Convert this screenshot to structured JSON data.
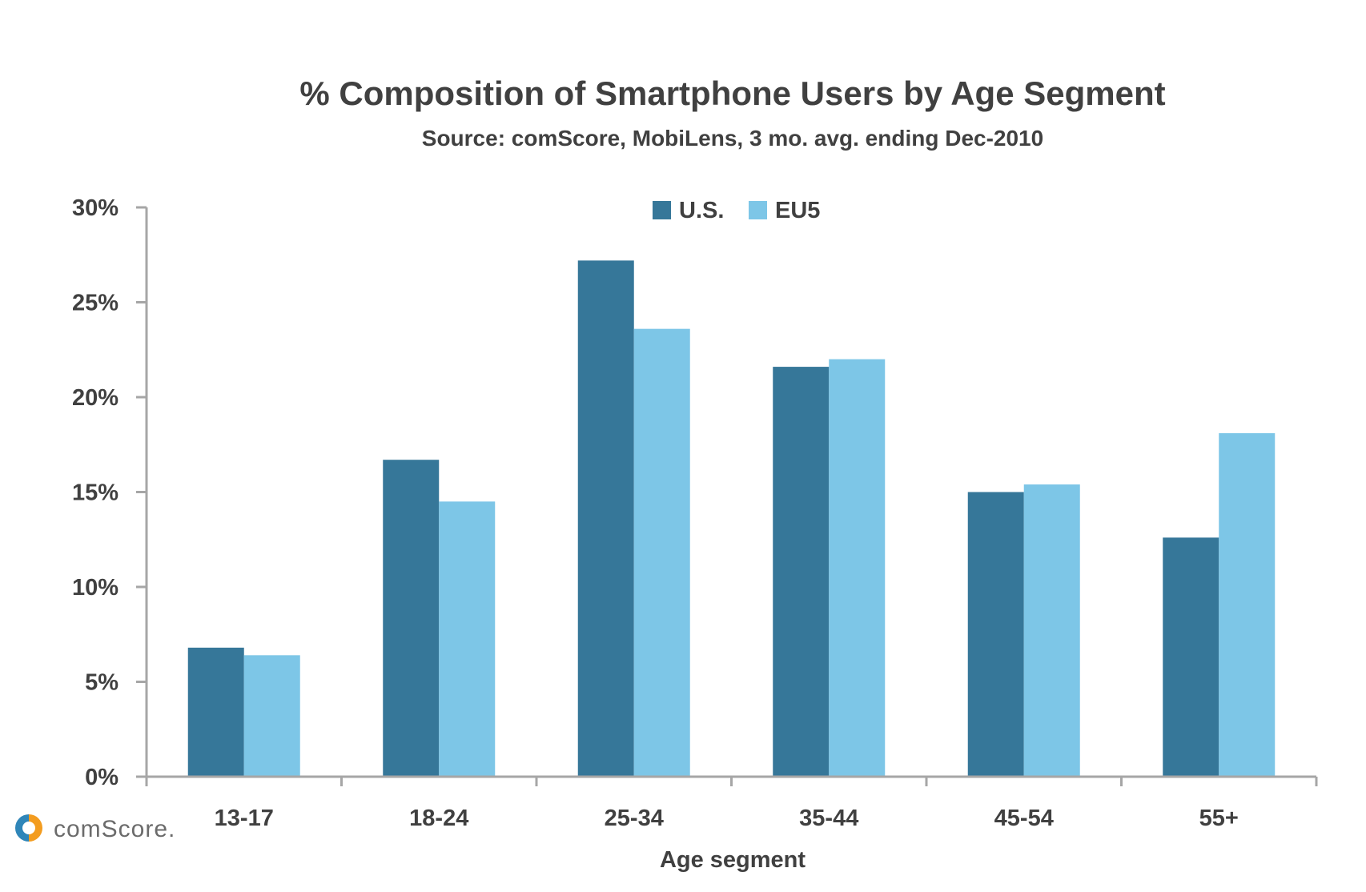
{
  "chart_data": {
    "type": "bar",
    "title": "% Composition of Smartphone Users by Age Segment",
    "subtitle": "Source: comScore, MobiLens, 3 mo. avg. ending Dec-2010",
    "xlabel": "Age segment",
    "ylabel": "",
    "ylim": [
      0,
      30
    ],
    "yticks": [
      "0%",
      "5%",
      "10%",
      "15%",
      "20%",
      "25%",
      "30%"
    ],
    "ytick_values": [
      0,
      5,
      10,
      15,
      20,
      25,
      30
    ],
    "categories": [
      "13-17",
      "18-24",
      "25-34",
      "35-44",
      "45-54",
      "55+"
    ],
    "series": [
      {
        "name": "U.S.",
        "color": "#367799",
        "values": [
          6.8,
          16.7,
          27.2,
          21.6,
          15.0,
          12.6
        ]
      },
      {
        "name": "EU5",
        "color": "#7dc6e7",
        "values": [
          6.4,
          14.5,
          23.6,
          22.0,
          15.4,
          18.1
        ]
      }
    ],
    "legend_position": "top-center",
    "grid": false
  },
  "logo": {
    "text": "comScore.",
    "icon": "comscore-logo-icon"
  },
  "colors": {
    "axis": "#a6a6a6",
    "text": "#404040",
    "us": "#367799",
    "eu5": "#7dc6e7"
  }
}
